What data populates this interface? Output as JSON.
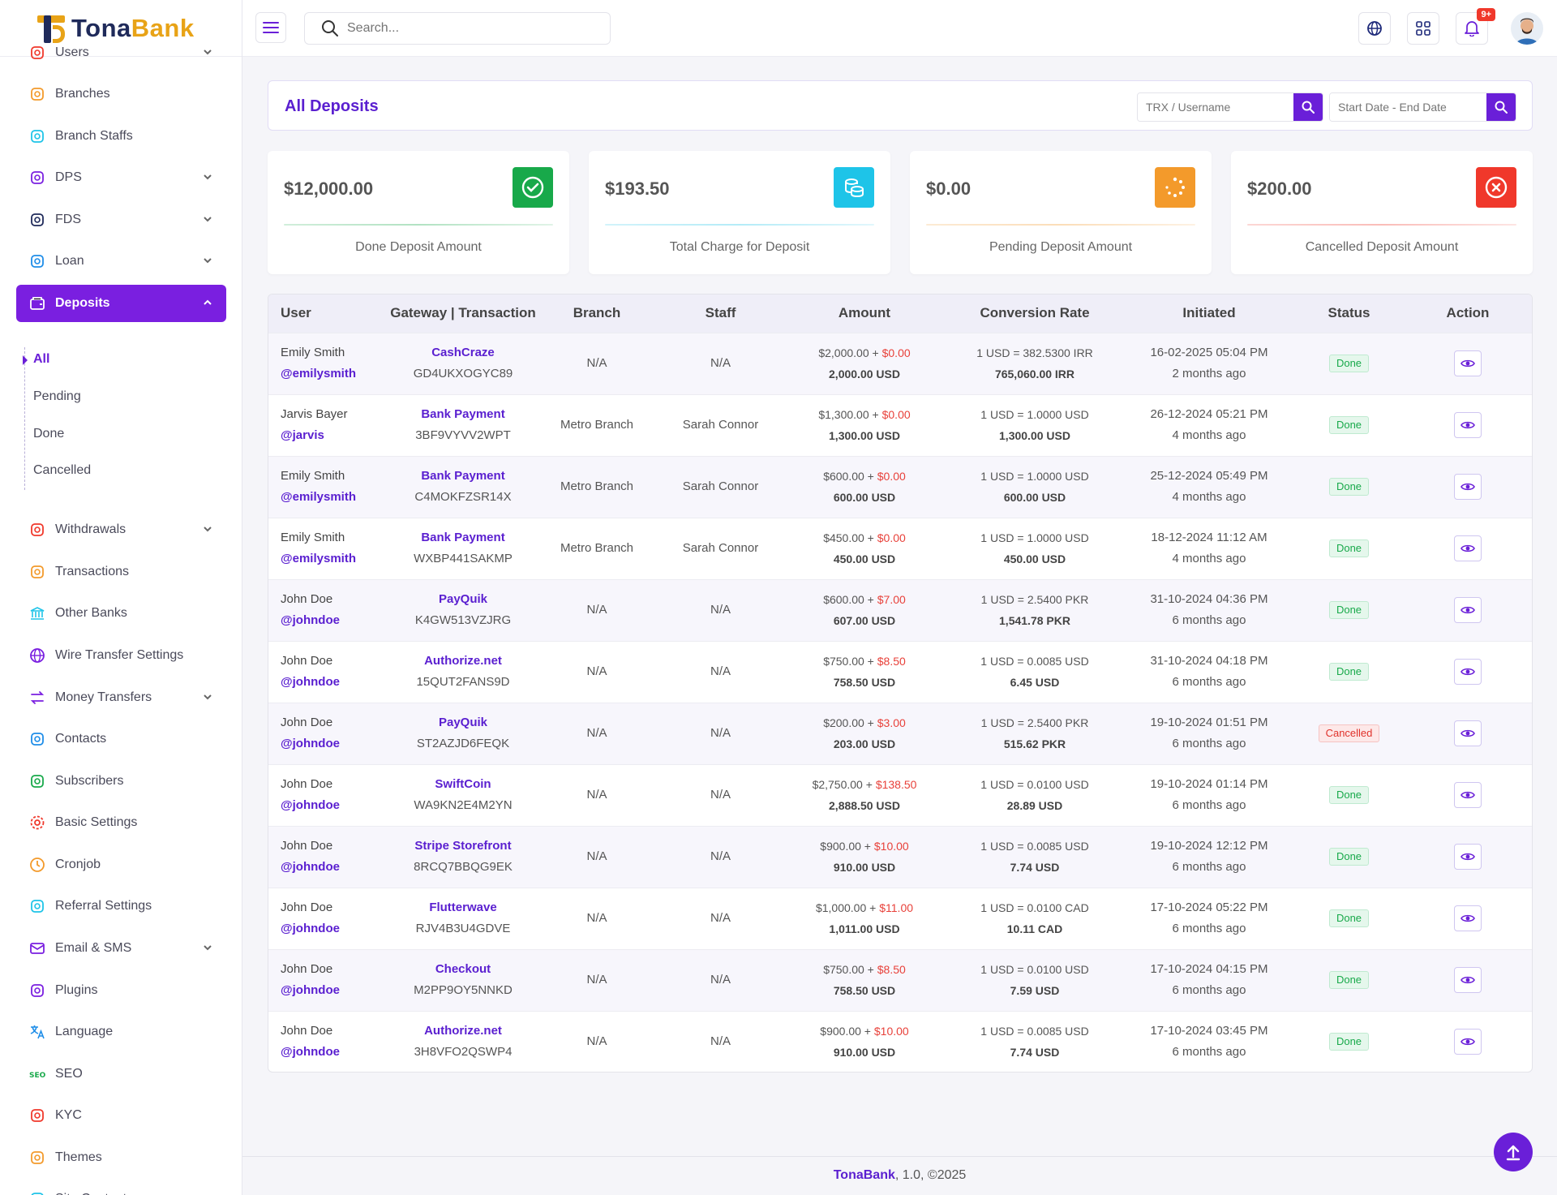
{
  "brand": {
    "name_part1": "Tona",
    "name_part2": "Bank"
  },
  "search": {
    "placeholder": "Search..."
  },
  "notifications": {
    "badge": "9+"
  },
  "sidebar": {
    "items": [
      {
        "label": "Users",
        "icon": "users-icon",
        "color": "#f0382b"
      },
      {
        "label": "Branches",
        "icon": "branches-icon",
        "color": "#f39a2b"
      },
      {
        "label": "Branch Staffs",
        "icon": "staffs-icon",
        "color": "#1ec4e8"
      },
      {
        "label": "DPS",
        "icon": "dps-icon",
        "color": "#7a1fe0"
      },
      {
        "label": "FDS",
        "icon": "fds-icon",
        "color": "#1f2a5a"
      },
      {
        "label": "Loan",
        "icon": "loan-icon",
        "color": "#1e8de8"
      },
      {
        "label": "Deposits",
        "icon": "deposits-icon",
        "color": "#ffffff"
      },
      {
        "label": "Withdrawals",
        "icon": "withdrawals-icon",
        "color": "#f0382b"
      },
      {
        "label": "Transactions",
        "icon": "transactions-icon",
        "color": "#f39a2b"
      },
      {
        "label": "Other Banks",
        "icon": "bank-icon",
        "color": "#1ec4e8"
      },
      {
        "label": "Wire Transfer Settings",
        "icon": "globe-icon",
        "color": "#7a1fe0"
      },
      {
        "label": "Money Transfers",
        "icon": "transfer-icon",
        "color": "#7a1fe0"
      },
      {
        "label": "Contacts",
        "icon": "contacts-icon",
        "color": "#1e8de8"
      },
      {
        "label": "Subscribers",
        "icon": "subscribers-icon",
        "color": "#18a94a"
      },
      {
        "label": "Basic Settings",
        "icon": "gear-icon",
        "color": "#f0382b"
      },
      {
        "label": "Cronjob",
        "icon": "clock-icon",
        "color": "#f39a2b"
      },
      {
        "label": "Referral Settings",
        "icon": "referral-icon",
        "color": "#1ec4e8"
      },
      {
        "label": "Email & SMS",
        "icon": "email-icon",
        "color": "#7a1fe0"
      },
      {
        "label": "Plugins",
        "icon": "plug-icon",
        "color": "#7a1fe0"
      },
      {
        "label": "Language",
        "icon": "language-icon",
        "color": "#1e8de8"
      },
      {
        "label": "SEO",
        "icon": "seo-icon",
        "color": "#18a94a"
      },
      {
        "label": "KYC",
        "icon": "kyc-icon",
        "color": "#f0382b"
      },
      {
        "label": "Themes",
        "icon": "themes-icon",
        "color": "#f39a2b"
      },
      {
        "label": "Site Content",
        "icon": "content-icon",
        "color": "#1ec4e8"
      }
    ],
    "deposit_sub": [
      "All",
      "Pending",
      "Done",
      "Cancelled"
    ]
  },
  "page": {
    "title": "All Deposits",
    "filter_trx_placeholder": "TRX / Username",
    "filter_date_placeholder": "Start Date - End Date"
  },
  "stats": [
    {
      "amount": "$12,000.00",
      "label": "Done Deposit Amount",
      "color": "#18a94a"
    },
    {
      "amount": "$193.50",
      "label": "Total Charge for Deposit",
      "color": "#1ec4e8"
    },
    {
      "amount": "$0.00",
      "label": "Pending Deposit Amount",
      "color": "#f39a2b"
    },
    {
      "amount": "$200.00",
      "label": "Cancelled Deposit Amount",
      "color": "#f0382b"
    }
  ],
  "table": {
    "headers": [
      "User",
      "Gateway | Transaction",
      "Branch",
      "Staff",
      "Amount",
      "Conversion Rate",
      "Initiated",
      "Status",
      "Action"
    ],
    "rows": [
      {
        "name": "Emily Smith",
        "handle": "@emilysmith",
        "gateway": "CashCraze",
        "trx": "GD4UKXOGYC89",
        "branch": "N/A",
        "staff": "N/A",
        "amount": "$2,000.00",
        "charge": "$0.00",
        "total": "2,000.00 USD",
        "rate": "1 USD = 382.5300 IRR",
        "converted": "765,060.00 IRR",
        "date": "16-02-2025 05:04 PM",
        "ago": "2 months ago",
        "status": "Done"
      },
      {
        "name": "Jarvis Bayer",
        "handle": "@jarvis",
        "gateway": "Bank Payment",
        "trx": "3BF9VYVV2WPT",
        "branch": "Metro Branch",
        "staff": "Sarah Connor",
        "amount": "$1,300.00",
        "charge": "$0.00",
        "total": "1,300.00 USD",
        "rate": "1 USD = 1.0000 USD",
        "converted": "1,300.00 USD",
        "date": "26-12-2024 05:21 PM",
        "ago": "4 months ago",
        "status": "Done"
      },
      {
        "name": "Emily Smith",
        "handle": "@emilysmith",
        "gateway": "Bank Payment",
        "trx": "C4MOKFZSR14X",
        "branch": "Metro Branch",
        "staff": "Sarah Connor",
        "amount": "$600.00",
        "charge": "$0.00",
        "total": "600.00 USD",
        "rate": "1 USD = 1.0000 USD",
        "converted": "600.00 USD",
        "date": "25-12-2024 05:49 PM",
        "ago": "4 months ago",
        "status": "Done"
      },
      {
        "name": "Emily Smith",
        "handle": "@emilysmith",
        "gateway": "Bank Payment",
        "trx": "WXBP441SAKMP",
        "branch": "Metro Branch",
        "staff": "Sarah Connor",
        "amount": "$450.00",
        "charge": "$0.00",
        "total": "450.00 USD",
        "rate": "1 USD = 1.0000 USD",
        "converted": "450.00 USD",
        "date": "18-12-2024 11:12 AM",
        "ago": "4 months ago",
        "status": "Done"
      },
      {
        "name": "John Doe",
        "handle": "@johndoe",
        "gateway": "PayQuik",
        "trx": "K4GW513VZJRG",
        "branch": "N/A",
        "staff": "N/A",
        "amount": "$600.00",
        "charge": "$7.00",
        "total": "607.00 USD",
        "rate": "1 USD = 2.5400 PKR",
        "converted": "1,541.78 PKR",
        "date": "31-10-2024 04:36 PM",
        "ago": "6 months ago",
        "status": "Done"
      },
      {
        "name": "John Doe",
        "handle": "@johndoe",
        "gateway": "Authorize.net",
        "trx": "15QUT2FANS9D",
        "branch": "N/A",
        "staff": "N/A",
        "amount": "$750.00",
        "charge": "$8.50",
        "total": "758.50 USD",
        "rate": "1 USD = 0.0085 USD",
        "converted": "6.45 USD",
        "date": "31-10-2024 04:18 PM",
        "ago": "6 months ago",
        "status": "Done"
      },
      {
        "name": "John Doe",
        "handle": "@johndoe",
        "gateway": "PayQuik",
        "trx": "ST2AZJD6FEQK",
        "branch": "N/A",
        "staff": "N/A",
        "amount": "$200.00",
        "charge": "$3.00",
        "total": "203.00 USD",
        "rate": "1 USD = 2.5400 PKR",
        "converted": "515.62 PKR",
        "date": "19-10-2024 01:51 PM",
        "ago": "6 months ago",
        "status": "Cancelled"
      },
      {
        "name": "John Doe",
        "handle": "@johndoe",
        "gateway": "SwiftCoin",
        "trx": "WA9KN2E4M2YN",
        "branch": "N/A",
        "staff": "N/A",
        "amount": "$2,750.00",
        "charge": "$138.50",
        "total": "2,888.50 USD",
        "rate": "1 USD = 0.0100 USD",
        "converted": "28.89 USD",
        "date": "19-10-2024 01:14 PM",
        "ago": "6 months ago",
        "status": "Done"
      },
      {
        "name": "John Doe",
        "handle": "@johndoe",
        "gateway": "Stripe Storefront",
        "trx": "8RCQ7BBQG9EK",
        "branch": "N/A",
        "staff": "N/A",
        "amount": "$900.00",
        "charge": "$10.00",
        "total": "910.00 USD",
        "rate": "1 USD = 0.0085 USD",
        "converted": "7.74 USD",
        "date": "19-10-2024 12:12 PM",
        "ago": "6 months ago",
        "status": "Done"
      },
      {
        "name": "John Doe",
        "handle": "@johndoe",
        "gateway": "Flutterwave",
        "trx": "RJV4B3U4GDVE",
        "branch": "N/A",
        "staff": "N/A",
        "amount": "$1,000.00",
        "charge": "$11.00",
        "total": "1,011.00 USD",
        "rate": "1 USD = 0.0100 CAD",
        "converted": "10.11 CAD",
        "date": "17-10-2024 05:22 PM",
        "ago": "6 months ago",
        "status": "Done"
      },
      {
        "name": "John Doe",
        "handle": "@johndoe",
        "gateway": "Checkout",
        "trx": "M2PP9OY5NNKD",
        "branch": "N/A",
        "staff": "N/A",
        "amount": "$750.00",
        "charge": "$8.50",
        "total": "758.50 USD",
        "rate": "1 USD = 0.0100 USD",
        "converted": "7.59 USD",
        "date": "17-10-2024 04:15 PM",
        "ago": "6 months ago",
        "status": "Done"
      },
      {
        "name": "John Doe",
        "handle": "@johndoe",
        "gateway": "Authorize.net",
        "trx": "3H8VFO2QSWP4",
        "branch": "N/A",
        "staff": "N/A",
        "amount": "$900.00",
        "charge": "$10.00",
        "total": "910.00 USD",
        "rate": "1 USD = 0.0085 USD",
        "converted": "7.74 USD",
        "date": "17-10-2024 03:45 PM",
        "ago": "6 months ago",
        "status": "Done"
      }
    ]
  },
  "footer": {
    "brand": "TonaBank",
    "rest": ", 1.0, ©2025"
  }
}
